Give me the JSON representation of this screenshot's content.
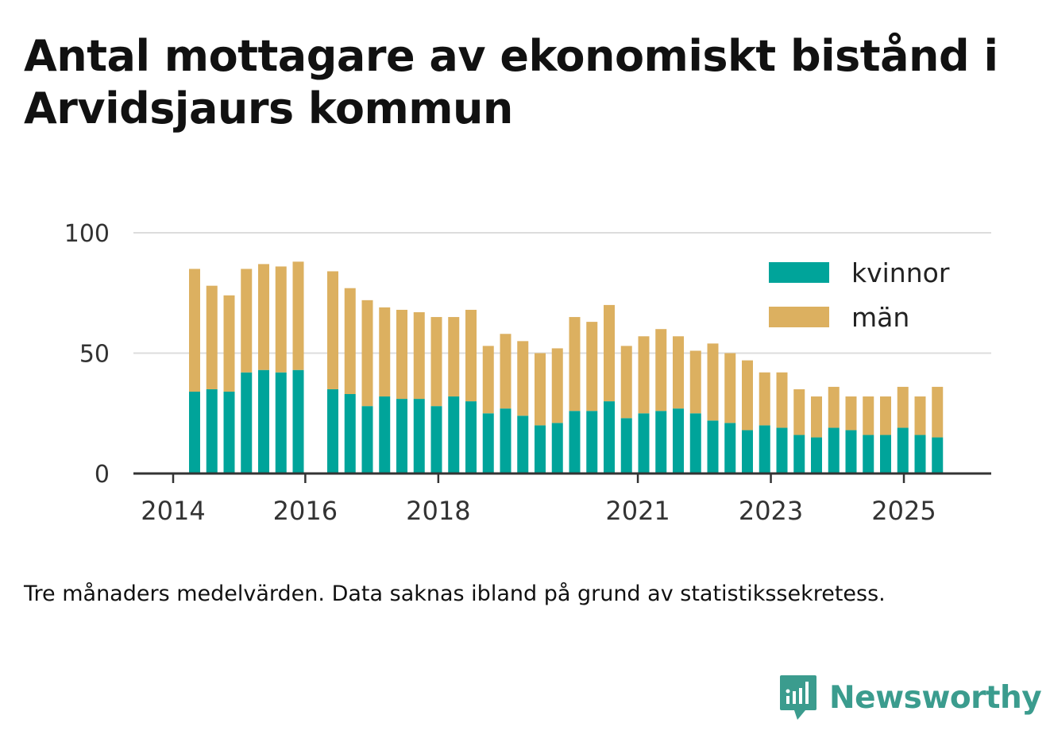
{
  "title": "Antal mottagare av ekonomiskt bistånd i Arvidsjaurs kommun",
  "footnote": "Tre månaders medelvärden. Data saknas ibland på grund av statistikssekretess.",
  "brand": {
    "name": "Newsworthy",
    "icon": "newsworthy-logo-icon",
    "color": "#3b9c8e"
  },
  "chart_data": {
    "type": "bar",
    "stacked": true,
    "ylim": [
      0,
      100
    ],
    "yticks": [
      0,
      50,
      100
    ],
    "ytick_labels": [
      "0",
      "50",
      "100"
    ],
    "xticks": [
      {
        "label": "2014",
        "pos": 0
      },
      {
        "label": "2016",
        "pos": 7.65
      },
      {
        "label": "2018",
        "pos": 15.35
      },
      {
        "label": "2021",
        "pos": 26.9
      },
      {
        "label": "2023",
        "pos": 34.6
      },
      {
        "label": "2025",
        "pos": 42.3
      }
    ],
    "grid": true,
    "legend_position": "top-right",
    "series": [
      {
        "name": "kvinnor",
        "color": "#00a49a",
        "values": [
          34,
          35,
          34,
          42,
          43,
          42,
          43,
          null,
          35,
          33,
          28,
          32,
          31,
          31,
          28,
          32,
          30,
          25,
          27,
          24,
          20,
          21,
          26,
          26,
          30,
          23,
          25,
          26,
          27,
          25,
          22,
          21,
          18,
          20,
          19,
          16,
          15,
          19,
          18,
          16,
          16,
          19,
          16,
          15
        ]
      },
      {
        "name": "män",
        "color": "#dcb060",
        "values": [
          51,
          43,
          40,
          43,
          44,
          44,
          45,
          null,
          49,
          44,
          44,
          37,
          37,
          36,
          37,
          33,
          38,
          28,
          31,
          31,
          30,
          31,
          39,
          37,
          40,
          30,
          32,
          34,
          30,
          26,
          32,
          29,
          29,
          22,
          23,
          19,
          17,
          17,
          14,
          16,
          16,
          17,
          16,
          21
        ]
      }
    ]
  }
}
